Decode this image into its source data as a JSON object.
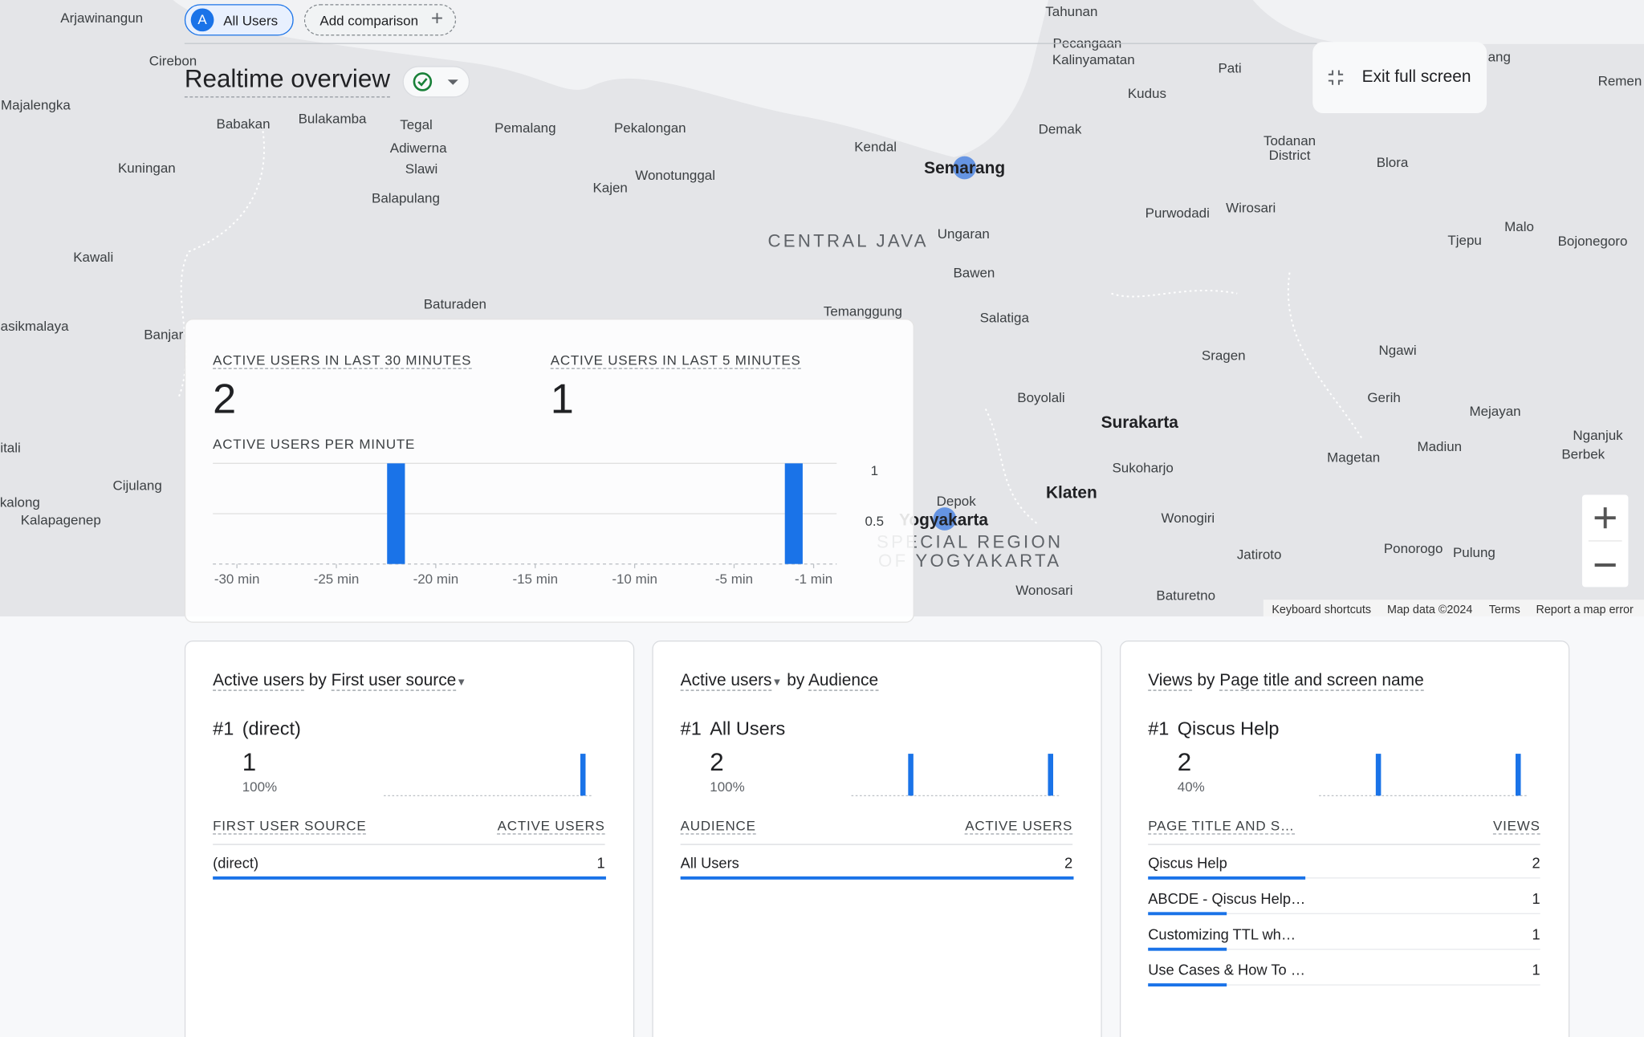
{
  "toolbar": {
    "segment_letter": "A",
    "segment": "All Users",
    "add_comparison": "Add comparison"
  },
  "title": "Realtime overview",
  "exit_full_screen": "Exit full screen",
  "map": {
    "labels": [
      "Arjawinangun",
      "Cirebon",
      "Majalengka",
      "Babakan",
      "Bulakamba",
      "Tegal",
      "Adiwerna",
      "Slawi",
      "Balapulang",
      "Pemalang",
      "Pekalongan",
      "Kajen",
      "Wonotunggal",
      "Kendal",
      "Semarang",
      "Tahunan",
      "Pecangaan",
      "Kalinyamatan",
      "Pati",
      "Kudus",
      "Demak",
      "Todanan",
      "District",
      "Blora",
      "Purwodadi",
      "Wirosari",
      "CENTRAL JAVA",
      "Ungaran",
      "Bawen",
      "Salatiga",
      "Temanggung",
      "Baturaden",
      "Kuningan",
      "Kawali",
      "asikmalaya",
      "Banjar",
      "Malo",
      "Tjepu",
      "Bojonegoro",
      "Sragen",
      "Ngawi",
      "Boyolali",
      "Surakarta",
      "Gerih",
      "Mejayan",
      "Nganjuk",
      "Berbek",
      "Madiun",
      "Magetan",
      "Sukoharjo",
      "Klaten",
      "Depok",
      "Yogyakarta",
      "SPECIAL REGION",
      "OF YOGYAKARTA",
      "Wonogiri",
      "Jatiroto",
      "Ponorogo",
      "Pulung",
      "Wonosari",
      "Baturetno",
      "Cijulang",
      "itali",
      "kalong",
      "Kalapagenep",
      "Remen",
      "ang"
    ],
    "footer": [
      "Keyboard shortcuts",
      "Map data ©2024",
      "Terms",
      "Report a map error"
    ]
  },
  "realtime": {
    "metrics": [
      {
        "label": "ACTIVE USERS IN LAST 30 MINUTES",
        "value": 2
      },
      {
        "label": "ACTIVE USERS IN LAST 5 MINUTES",
        "value": 1
      }
    ],
    "per_minute": {
      "type": "bar",
      "title": "ACTIVE USERS PER MINUTE",
      "color": "#1a73e8",
      "x": [
        -30,
        -29,
        -28,
        -27,
        -26,
        -25,
        -24,
        -23,
        -22,
        -21,
        -20,
        -19,
        -18,
        -17,
        -16,
        -15,
        -14,
        -13,
        -12,
        -11,
        -10,
        -9,
        -8,
        -7,
        -6,
        -5,
        -4,
        -3,
        -2,
        -1
      ],
      "values": [
        0,
        0,
        0,
        0,
        0,
        0,
        0,
        0,
        1,
        0,
        0,
        0,
        0,
        0,
        0,
        0,
        0,
        0,
        0,
        0,
        0,
        0,
        0,
        0,
        0,
        0,
        0,
        0,
        1,
        0
      ],
      "xlim": [
        -31,
        0
      ],
      "xticks": [
        {
          "value": -30,
          "label": "-30 min"
        },
        {
          "value": -25,
          "label": "-25 min"
        },
        {
          "value": -20,
          "label": "-20 min"
        },
        {
          "value": -15,
          "label": "-15 min"
        },
        {
          "value": -10,
          "label": "-10 min"
        },
        {
          "value": -5,
          "label": "-5 min"
        },
        {
          "value": -1,
          "label": "-1 min"
        }
      ],
      "ylim": [
        0,
        1
      ],
      "yticks": [
        0.5,
        1
      ]
    }
  },
  "cards": [
    {
      "metric": "Active users",
      "by": "by",
      "dimension": "First user source",
      "rank": "#1",
      "top_name": "(direct)",
      "top_value": 1,
      "share": "100%",
      "trend": [
        0,
        0,
        0,
        0,
        0,
        0,
        0,
        0,
        0,
        0,
        0,
        0,
        0,
        0,
        0,
        0,
        0,
        0,
        0,
        0,
        0,
        0,
        0,
        0,
        0,
        0,
        0,
        0,
        1,
        0
      ],
      "headers": [
        "FIRST USER SOURCE",
        "ACTIVE USERS"
      ],
      "rows": [
        [
          "(direct)",
          1
        ]
      ]
    },
    {
      "metric": "Active users",
      "by": "by",
      "dimension": "Audience",
      "rank": "#1",
      "top_name": "All Users",
      "top_value": 2,
      "share": "100%",
      "trend": [
        0,
        0,
        0,
        0,
        0,
        0,
        0,
        0,
        1,
        0,
        0,
        0,
        0,
        0,
        0,
        0,
        0,
        0,
        0,
        0,
        0,
        0,
        0,
        0,
        0,
        0,
        0,
        0,
        1,
        0
      ],
      "headers": [
        "AUDIENCE",
        "ACTIVE USERS"
      ],
      "rows": [
        [
          "All Users",
          2
        ]
      ]
    },
    {
      "metric": "Views",
      "by": "by",
      "dimension": "Page title and screen name",
      "rank": "#1",
      "top_name": "Qiscus Help",
      "top_value": 2,
      "share": "40%",
      "trend": [
        0,
        0,
        0,
        0,
        0,
        0,
        0,
        0,
        1,
        0,
        0,
        0,
        0,
        0,
        0,
        0,
        0,
        0,
        0,
        0,
        0,
        0,
        0,
        0,
        0,
        0,
        0,
        0,
        1,
        0
      ],
      "headers": [
        "PAGE TITLE AND S…",
        "VIEWS"
      ],
      "rows": [
        [
          "Qiscus Help",
          2
        ],
        [
          "ABCDE - Qiscus Help…",
          1
        ],
        [
          "Customizing TTL wh…",
          1
        ],
        [
          "Use Cases & How To …",
          1
        ]
      ]
    }
  ]
}
